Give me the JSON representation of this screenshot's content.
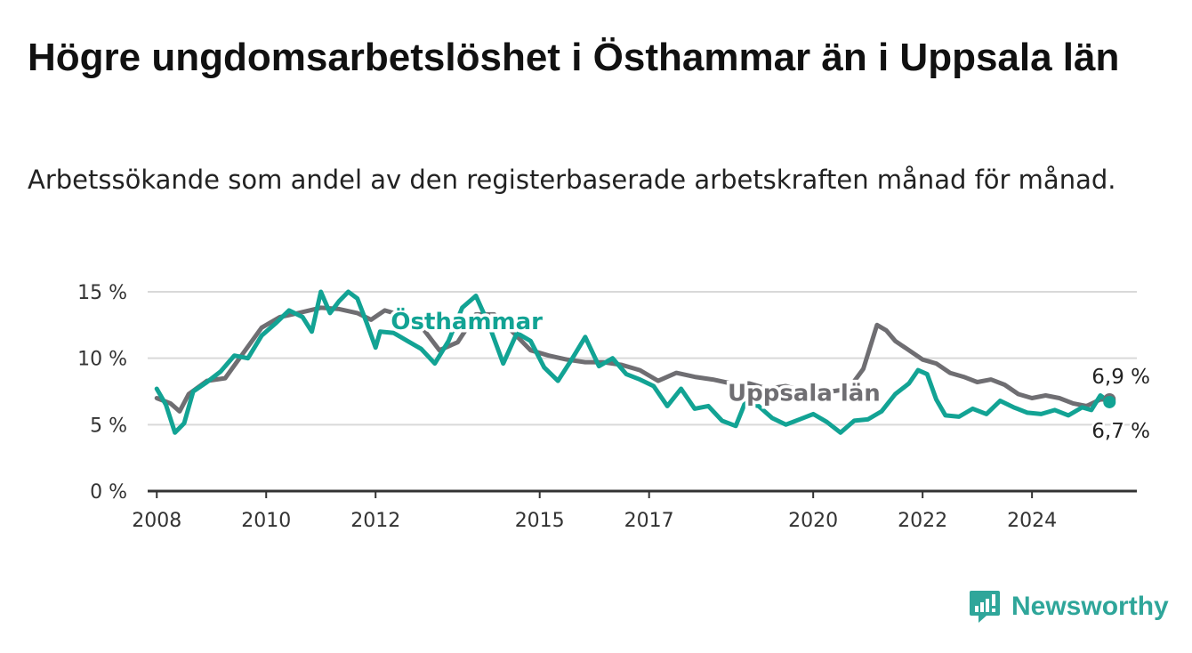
{
  "title": "Högre ungdomsarbetslöshet i Östhammar än i Uppsala län",
  "subtitle": "Arbetssökande som andel av den registerbaserade arbetskraften månad för månad.",
  "logo": {
    "text": "Newsworthy",
    "icon": "bar-chart-exclamation-icon"
  },
  "colors": {
    "osthammar": "#12a394",
    "uppsala": "#6f6e72",
    "grid": "#d9d9d9",
    "axis": "#333333",
    "text": "#333333"
  },
  "chart_data": {
    "type": "line",
    "title": "Högre ungdomsarbetslöshet i Östhammar än i Uppsala län",
    "subtitle": "Arbetssökande som andel av den registerbaserade arbetskraften månad för månad.",
    "x_axis": {
      "type": "date",
      "min": "2007-11",
      "max": "2025-12",
      "ticks": [
        "2008",
        "2010",
        "2012",
        "2015",
        "2017",
        "2020",
        "2022",
        "2024"
      ]
    },
    "y_axis": {
      "min": 0,
      "max": 15,
      "ticks": [
        {
          "value": 0,
          "label": "0 %"
        },
        {
          "value": 5,
          "label": "5 %"
        },
        {
          "value": 10,
          "label": "10 %"
        },
        {
          "value": 15,
          "label": "15 %"
        }
      ]
    },
    "grid": "horizontal",
    "series": [
      {
        "name": "Östhammar",
        "color": "#12a394",
        "end_label": "6,7 %",
        "points": [
          [
            "2008-01",
            7.7
          ],
          [
            "2008-03",
            6.5
          ],
          [
            "2008-05",
            4.4
          ],
          [
            "2008-07",
            5.1
          ],
          [
            "2008-09",
            7.5
          ],
          [
            "2008-12",
            8.2
          ],
          [
            "2009-03",
            9.0
          ],
          [
            "2009-06",
            10.2
          ],
          [
            "2009-09",
            10.0
          ],
          [
            "2009-12",
            11.7
          ],
          [
            "2010-03",
            12.6
          ],
          [
            "2010-06",
            13.6
          ],
          [
            "2010-09",
            13.1
          ],
          [
            "2010-11",
            12.0
          ],
          [
            "2011-01",
            15.0
          ],
          [
            "2011-03",
            13.4
          ],
          [
            "2011-05",
            14.3
          ],
          [
            "2011-07",
            15.0
          ],
          [
            "2011-09",
            14.5
          ],
          [
            "2011-11",
            12.7
          ],
          [
            "2012-01",
            10.8
          ],
          [
            "2012-02",
            12.0
          ],
          [
            "2012-05",
            11.9
          ],
          [
            "2012-08",
            11.3
          ],
          [
            "2012-11",
            10.7
          ],
          [
            "2013-02",
            9.6
          ],
          [
            "2013-05",
            11.3
          ],
          [
            "2013-08",
            13.8
          ],
          [
            "2013-11",
            14.7
          ],
          [
            "2014-02",
            12.4
          ],
          [
            "2014-05",
            9.6
          ],
          [
            "2014-08",
            11.9
          ],
          [
            "2014-11",
            11.3
          ],
          [
            "2015-02",
            9.3
          ],
          [
            "2015-05",
            8.3
          ],
          [
            "2015-08",
            9.9
          ],
          [
            "2015-11",
            11.6
          ],
          [
            "2016-02",
            9.4
          ],
          [
            "2016-05",
            10.0
          ],
          [
            "2016-08",
            8.8
          ],
          [
            "2016-11",
            8.4
          ],
          [
            "2017-02",
            7.9
          ],
          [
            "2017-05",
            6.4
          ],
          [
            "2017-08",
            7.7
          ],
          [
            "2017-11",
            6.2
          ],
          [
            "2018-02",
            6.4
          ],
          [
            "2018-05",
            5.3
          ],
          [
            "2018-08",
            4.9
          ],
          [
            "2018-10",
            6.6
          ],
          [
            "2019-01",
            6.4
          ],
          [
            "2019-04",
            5.5
          ],
          [
            "2019-07",
            5.0
          ],
          [
            "2019-10",
            5.4
          ],
          [
            "2020-01",
            5.8
          ],
          [
            "2020-04",
            5.2
          ],
          [
            "2020-07",
            4.4
          ],
          [
            "2020-10",
            5.3
          ],
          [
            "2021-01",
            5.4
          ],
          [
            "2021-04",
            6.0
          ],
          [
            "2021-07",
            7.3
          ],
          [
            "2021-10",
            8.1
          ],
          [
            "2021-12",
            9.1
          ],
          [
            "2022-02",
            8.8
          ],
          [
            "2022-04",
            6.9
          ],
          [
            "2022-06",
            5.7
          ],
          [
            "2022-09",
            5.6
          ],
          [
            "2022-12",
            6.2
          ],
          [
            "2023-03",
            5.8
          ],
          [
            "2023-06",
            6.8
          ],
          [
            "2023-09",
            6.3
          ],
          [
            "2023-12",
            5.9
          ],
          [
            "2024-03",
            5.8
          ],
          [
            "2024-06",
            6.1
          ],
          [
            "2024-09",
            5.7
          ],
          [
            "2024-12",
            6.3
          ],
          [
            "2025-02",
            6.1
          ],
          [
            "2025-04",
            7.2
          ],
          [
            "2025-06",
            6.7
          ]
        ]
      },
      {
        "name": "Uppsala län",
        "color": "#6f6e72",
        "end_label": "6,9 %",
        "points": [
          [
            "2008-01",
            7.0
          ],
          [
            "2008-04",
            6.6
          ],
          [
            "2008-06",
            6.0
          ],
          [
            "2008-08",
            7.3
          ],
          [
            "2008-12",
            8.3
          ],
          [
            "2009-04",
            8.5
          ],
          [
            "2009-08",
            10.4
          ],
          [
            "2009-12",
            12.3
          ],
          [
            "2010-04",
            13.1
          ],
          [
            "2010-08",
            13.4
          ],
          [
            "2011-01",
            13.8
          ],
          [
            "2011-05",
            13.7
          ],
          [
            "2011-09",
            13.4
          ],
          [
            "2011-12",
            12.9
          ],
          [
            "2012-03",
            13.6
          ],
          [
            "2012-07",
            13.2
          ],
          [
            "2012-11",
            12.4
          ],
          [
            "2013-03",
            10.6
          ],
          [
            "2013-07",
            11.2
          ],
          [
            "2013-11",
            13.3
          ],
          [
            "2014-03",
            13.3
          ],
          [
            "2014-07",
            12.0
          ],
          [
            "2014-11",
            10.6
          ],
          [
            "2015-03",
            10.2
          ],
          [
            "2015-07",
            9.9
          ],
          [
            "2015-11",
            9.7
          ],
          [
            "2016-03",
            9.7
          ],
          [
            "2016-07",
            9.5
          ],
          [
            "2016-11",
            9.1
          ],
          [
            "2017-03",
            8.3
          ],
          [
            "2017-07",
            8.9
          ],
          [
            "2017-11",
            8.6
          ],
          [
            "2018-03",
            8.4
          ],
          [
            "2018-07",
            8.1
          ],
          [
            "2018-11",
            8.1
          ],
          [
            "2019-03",
            7.7
          ],
          [
            "2019-07",
            7.9
          ],
          [
            "2019-11",
            7.5
          ],
          [
            "2020-03",
            7.4
          ],
          [
            "2020-07",
            7.6
          ],
          [
            "2020-09",
            7.8
          ],
          [
            "2020-12",
            9.2
          ],
          [
            "2021-03",
            12.5
          ],
          [
            "2021-05",
            12.1
          ],
          [
            "2021-07",
            11.3
          ],
          [
            "2021-10",
            10.6
          ],
          [
            "2022-01",
            9.9
          ],
          [
            "2022-04",
            9.6
          ],
          [
            "2022-07",
            8.9
          ],
          [
            "2022-10",
            8.6
          ],
          [
            "2023-01",
            8.2
          ],
          [
            "2023-04",
            8.4
          ],
          [
            "2023-07",
            8.0
          ],
          [
            "2023-10",
            7.3
          ],
          [
            "2024-01",
            7.0
          ],
          [
            "2024-04",
            7.2
          ],
          [
            "2024-07",
            7.0
          ],
          [
            "2024-10",
            6.6
          ],
          [
            "2025-01",
            6.4
          ],
          [
            "2025-04",
            6.9
          ],
          [
            "2025-06",
            6.9
          ]
        ]
      }
    ],
    "annotations": [
      {
        "text": "Östhammar",
        "series": "Östhammar",
        "at": [
          "2013-09",
          12.2
        ]
      },
      {
        "text": "Uppsala län",
        "series": "Uppsala län",
        "at": [
          "2019-11",
          6.8
        ]
      }
    ]
  }
}
